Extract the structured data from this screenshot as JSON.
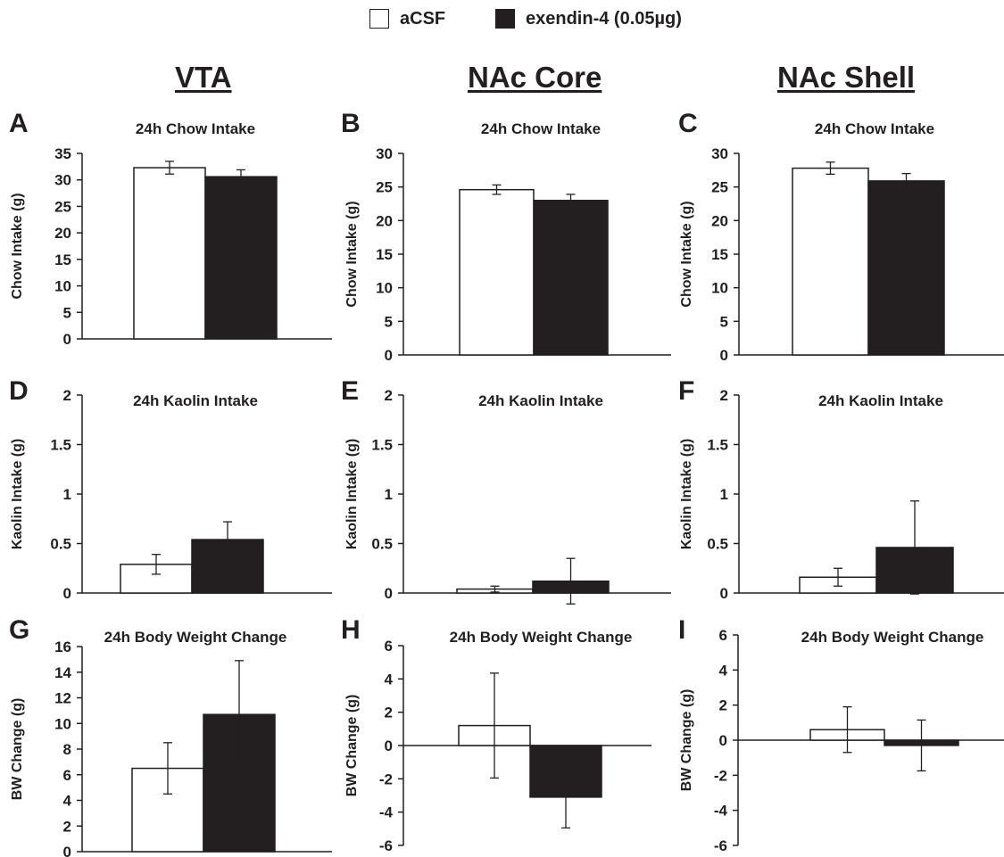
{
  "legend": [
    {
      "label": "aCSF",
      "color": "#ffffff"
    },
    {
      "label": "exendin-4 (0.05µg)",
      "color": "#231f20"
    }
  ],
  "columns": [
    "VTA",
    "NAc Core",
    "NAc Shell"
  ],
  "colors": {
    "ink": "#231f20",
    "acsf_fill": "#ffffff",
    "exendin_fill": "#231f20"
  },
  "chart_data": [
    {
      "panel": "A",
      "type": "bar",
      "title": "24h Chow Intake",
      "ylabel": "Chow Intake (g)",
      "ylim": [
        0,
        35
      ],
      "yticks": [
        0,
        5,
        10,
        15,
        20,
        25,
        30,
        35
      ],
      "series": [
        {
          "name": "aCSF",
          "value": 32.3,
          "error": 1.2
        },
        {
          "name": "exendin-4 (0.05µg)",
          "value": 30.6,
          "error": 1.3
        }
      ]
    },
    {
      "panel": "B",
      "type": "bar",
      "title": "24h Chow Intake",
      "ylabel": "Chow Intake (g)",
      "ylim": [
        0,
        30
      ],
      "yticks": [
        0,
        5,
        10,
        15,
        20,
        25,
        30
      ],
      "series": [
        {
          "name": "aCSF",
          "value": 24.6,
          "error": 0.7
        },
        {
          "name": "exendin-4 (0.05µg)",
          "value": 23.0,
          "error": 0.9
        }
      ]
    },
    {
      "panel": "C",
      "type": "bar",
      "title": "24h Chow Intake",
      "ylabel": "Chow Intake (g)",
      "ylim": [
        0,
        30
      ],
      "yticks": [
        0,
        5,
        10,
        15,
        20,
        25,
        30
      ],
      "series": [
        {
          "name": "aCSF",
          "value": 27.8,
          "error": 0.9
        },
        {
          "name": "exendin-4 (0.05µg)",
          "value": 25.9,
          "error": 1.1
        }
      ]
    },
    {
      "panel": "D",
      "type": "bar",
      "title": "24h Kaolin Intake",
      "ylabel": "Kaolin Intake (g)",
      "ylim": [
        0,
        2
      ],
      "yticks": [
        0,
        0.5,
        1,
        1.5,
        2
      ],
      "series": [
        {
          "name": "aCSF",
          "value": 0.29,
          "error": 0.1
        },
        {
          "name": "exendin-4 (0.05µg)",
          "value": 0.54,
          "error": 0.18
        }
      ]
    },
    {
      "panel": "E",
      "type": "bar",
      "title": "24h Kaolin Intake",
      "ylabel": "Kaolin Intake (g)",
      "ylim": [
        0,
        2
      ],
      "yticks": [
        0,
        0.5,
        1,
        1.5,
        2
      ],
      "series": [
        {
          "name": "aCSF",
          "value": 0.04,
          "error": 0.03
        },
        {
          "name": "exendin-4 (0.05µg)",
          "value": 0.12,
          "error": 0.23
        }
      ]
    },
    {
      "panel": "F",
      "type": "bar",
      "title": "24h Kaolin Intake",
      "ylabel": "Kaolin Intake (g)",
      "ylim": [
        0,
        2
      ],
      "yticks": [
        0,
        0.5,
        1,
        1.5,
        2
      ],
      "series": [
        {
          "name": "aCSF",
          "value": 0.16,
          "error": 0.09
        },
        {
          "name": "exendin-4 (0.05µg)",
          "value": 0.46,
          "error": 0.47
        }
      ]
    },
    {
      "panel": "G",
      "type": "bar",
      "title": "24h Body Weight Change",
      "ylabel": "BW Change (g)",
      "ylim": [
        0,
        16
      ],
      "yticks": [
        0,
        2,
        4,
        6,
        8,
        10,
        12,
        14,
        16
      ],
      "series": [
        {
          "name": "aCSF",
          "value": 6.5,
          "error": 2.0
        },
        {
          "name": "exendin-4 (0.05µg)",
          "value": 10.7,
          "error": 4.2
        }
      ]
    },
    {
      "panel": "H",
      "type": "bar",
      "title": "24h Body Weight Change",
      "ylabel": "BW Change (g)",
      "ylim": [
        -6,
        6
      ],
      "yticks": [
        -6,
        -4,
        -2,
        0,
        2,
        4,
        6
      ],
      "series": [
        {
          "name": "aCSF",
          "value": 1.2,
          "error": 3.15
        },
        {
          "name": "exendin-4 (0.05µg)",
          "value": -3.1,
          "error": 1.85
        }
      ]
    },
    {
      "panel": "I",
      "type": "bar",
      "title": "24h Body Weight Change",
      "ylabel": "BW Change (g)",
      "ylim": [
        -6,
        6
      ],
      "yticks": [
        -6,
        -4,
        -2,
        0,
        2,
        4,
        6
      ],
      "series": [
        {
          "name": "aCSF",
          "value": 0.6,
          "error": 1.3
        },
        {
          "name": "exendin-4 (0.05µg)",
          "value": -0.3,
          "error": 1.45
        }
      ]
    }
  ]
}
